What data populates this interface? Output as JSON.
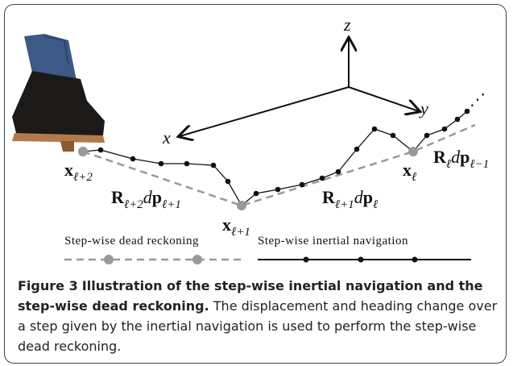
{
  "figure": {
    "axes": {
      "z": "z",
      "y": "y",
      "x": "x"
    },
    "points": [
      {
        "main": "x",
        "sub": "ℓ+2"
      },
      {
        "main": "x",
        "sub": "ℓ+1"
      },
      {
        "main": "x",
        "sub": "ℓ"
      }
    ],
    "transforms": [
      {
        "R": "R",
        "sub1": "ℓ+2",
        "d": "d",
        "p": "p",
        "sub2": "ℓ+1"
      },
      {
        "R": "R",
        "sub1": "ℓ+1",
        "d": "d",
        "p": "p",
        "sub2": "ℓ"
      },
      {
        "R": "R",
        "sub1": "ℓ",
        "d": "d",
        "p": "p",
        "sub2": "ℓ−1"
      }
    ],
    "legend": {
      "dead_reckoning": "Step-wise dead reckoning",
      "inertial": "Step-wise inertial navigation"
    }
  },
  "caption": {
    "label": "Figure 3",
    "title": "Illustration of the step-wise inertial navigation and the step-wise dead reckoning.",
    "text": "The displacement and heading change over a step given by the inertial navigation is used to perform the step-wise dead reckoning."
  }
}
